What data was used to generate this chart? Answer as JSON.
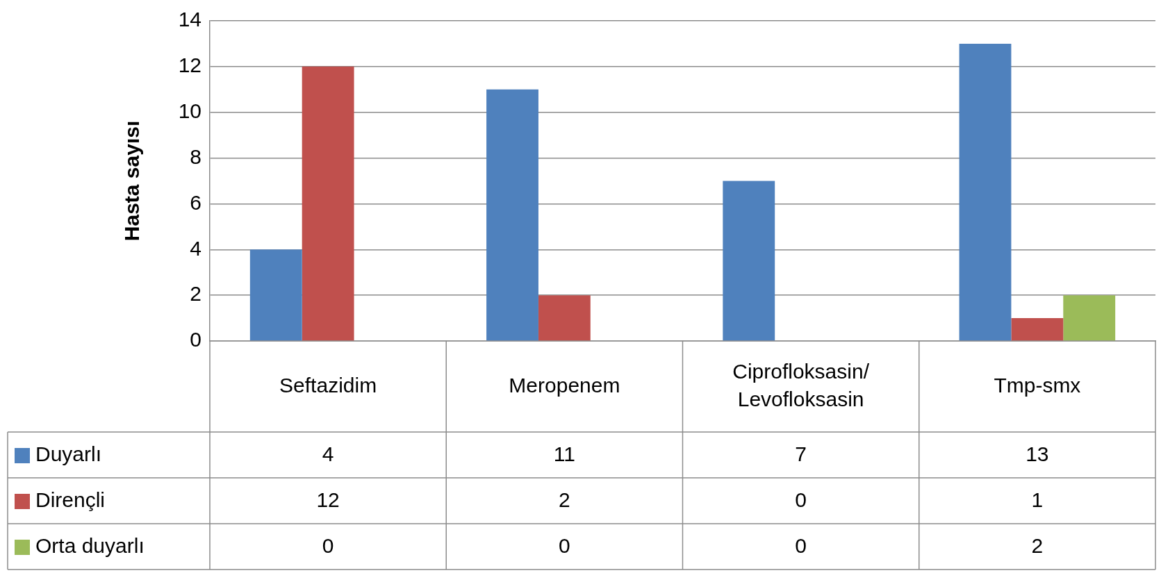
{
  "chart_data": {
    "type": "bar",
    "ylabel": "Hasta sayısı",
    "categories": [
      "Seftazidim",
      "Meropenem",
      "Ciprofloksasin/Levofloksasin",
      "Tmp-smx"
    ],
    "series": [
      {
        "name": "Duyarlı",
        "color": "#4f81bd",
        "values": [
          4,
          11,
          7,
          13
        ]
      },
      {
        "name": "Dirençli",
        "color": "#c0504d",
        "values": [
          12,
          2,
          0,
          1
        ]
      },
      {
        "name": "Orta duyarlı",
        "color": "#9bbb59",
        "values": [
          0,
          0,
          0,
          2
        ]
      }
    ],
    "ylim": [
      0,
      14
    ],
    "yticks": [
      0,
      2,
      4,
      6,
      8,
      10,
      12,
      14
    ],
    "grid": "y",
    "legend": "bottom left",
    "data_labels": true
  }
}
